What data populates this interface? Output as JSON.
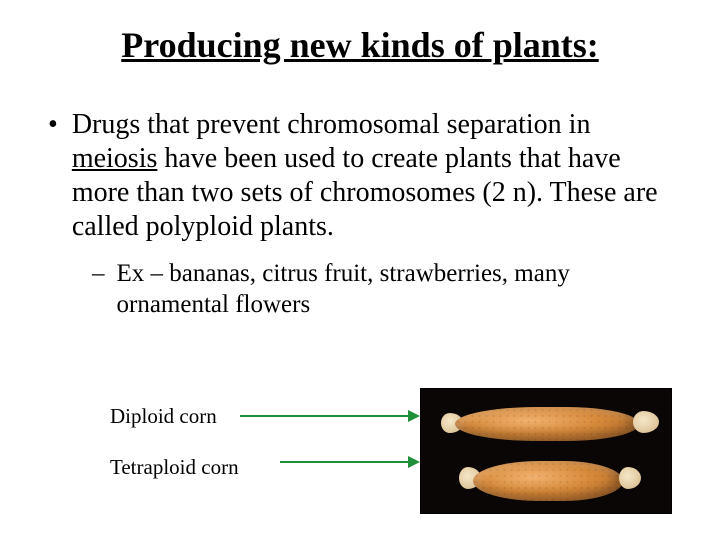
{
  "title": "Producing new kinds of plants:",
  "bullet": {
    "dot": "•",
    "pre": "Drugs that prevent chromosomal separation in ",
    "u": "meiosis",
    "post": " have been used to create plants that have more than two sets of chromosomes (2 n).  These are called polyploid plants."
  },
  "sub": {
    "dash": "–",
    "text": "Ex – bananas, citrus fruit, strawberries, many ornamental flowers"
  },
  "labels": {
    "diploid": "Diploid corn",
    "tetraploid": "Tetraploid corn"
  },
  "colors": {
    "arrow": "#1f8f3a",
    "photo_bg": "#0b0606"
  }
}
